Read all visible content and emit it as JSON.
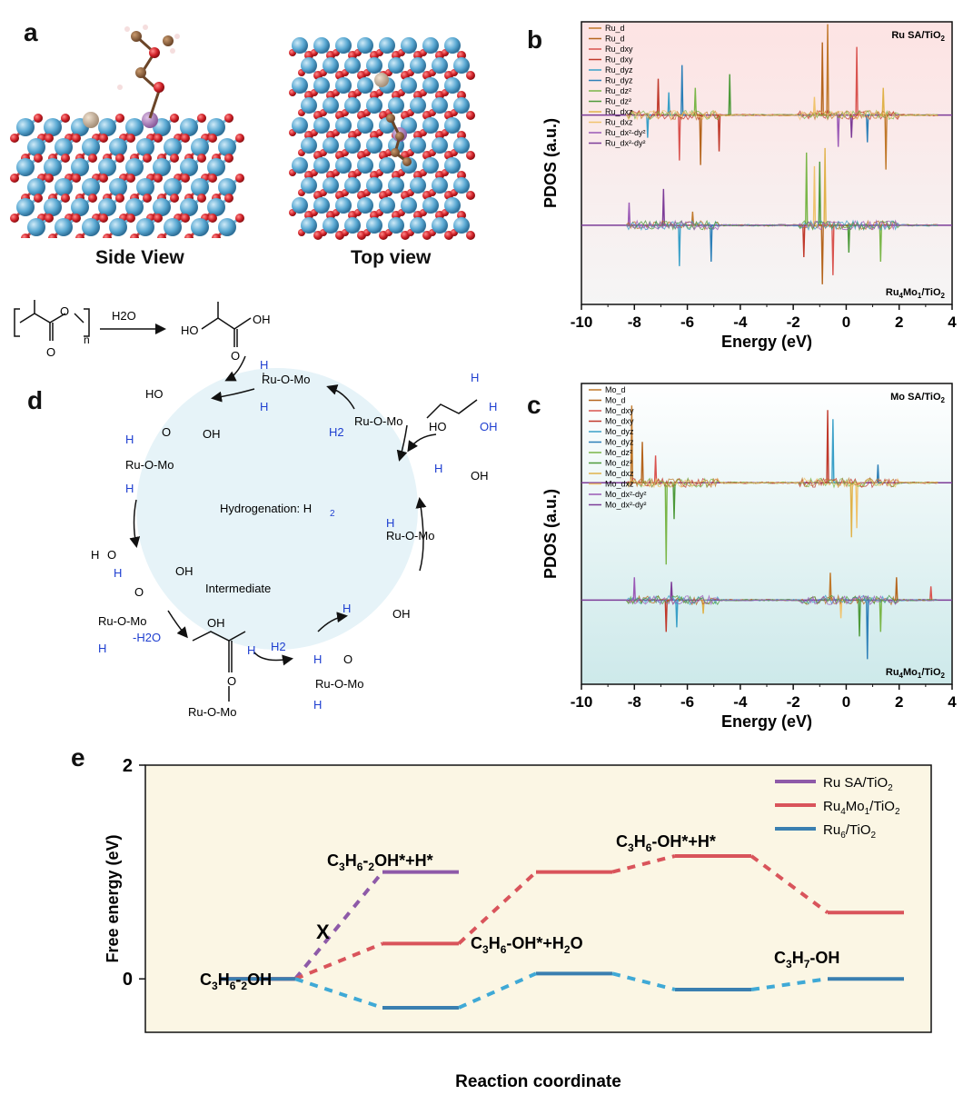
{
  "panels": {
    "a": "a",
    "b": "b",
    "c": "c",
    "d": "d",
    "e": "e"
  },
  "panel_a": {
    "side_label": "Side View",
    "top_label": "Top view"
  },
  "panel_d": {
    "polymer_reagent": "H2O",
    "n_label": "n",
    "hydrogenation": "Hydrogenation: H",
    "hydrogenation_sub": "2",
    "intermediate": "Intermediate",
    "minus_h2o": "-H2O",
    "ruomo": "Ru-O-Mo",
    "h2": "H2",
    "ho": "HO",
    "oh": "OH",
    "o": "O",
    "h": "H"
  },
  "chart_data": [
    {
      "id": "b",
      "type": "line",
      "ylabel": "PDOS (a.u.)",
      "xlabel": "Energy (eV)",
      "xlim": [
        -10,
        4
      ],
      "xticks": [
        -10,
        -8,
        -6,
        -4,
        -2,
        0,
        2,
        4
      ],
      "top_label": "Ru SA/TiO",
      "bottom_label": "Ru4Mo1/TiO",
      "legend": [
        "Ru_d",
        "Ru_d",
        "Ru_dxy",
        "Ru_dxy",
        "Ru_dyz",
        "Ru_dyz",
        "Ru_dz²",
        "Ru_dz²",
        "Ru_dxz",
        "Ru_dxz",
        "Ru_dx²-dy²",
        "Ru_dx²-dy²"
      ],
      "colors": [
        "#c0782a",
        "#b5651d",
        "#d9534f",
        "#c0392b",
        "#3aa0c8",
        "#2c7fb8",
        "#7ab648",
        "#4d9a3a",
        "#e0b24a",
        "#f0c36d",
        "#9b59b6",
        "#7d3c98"
      ],
      "background": [
        "#fde3e3",
        "#f5f5f5"
      ]
    },
    {
      "id": "c",
      "type": "line",
      "ylabel": "PDOS (a.u.)",
      "xlabel": "Energy (eV)",
      "xlim": [
        -10,
        4
      ],
      "xticks": [
        -10,
        -8,
        -6,
        -4,
        -2,
        0,
        2,
        4
      ],
      "top_label": "Mo SA/TiO",
      "bottom_label": "Ru4Mo1/TiO",
      "legend": [
        "Mo_d",
        "Mo_d",
        "Mo_dxy",
        "Mo_dxy",
        "Mo_dyz",
        "Mo_dyz",
        "Mo_dz²",
        "Mo_dz²",
        "Mo_dxz",
        "Mo_dxz",
        "Mo_dx²-dy²",
        "Mo_dx²-dy²"
      ],
      "colors": [
        "#c0782a",
        "#b5651d",
        "#d9534f",
        "#c0392b",
        "#3aa0c8",
        "#2c7fb8",
        "#7ab648",
        "#4d9a3a",
        "#e0b24a",
        "#f0c36d",
        "#9b59b6",
        "#7d3c98"
      ],
      "background": [
        "#ffffff",
        "#cde9ea"
      ]
    },
    {
      "id": "e",
      "type": "line",
      "xlabel": "Reaction coordinate",
      "ylabel": "Free energy (eV)",
      "ylim": [
        -0.5,
        2
      ],
      "yticks": [
        0,
        2
      ],
      "series": [
        {
          "name": "Ru SA/TiO2",
          "color": "#8e5aa8",
          "levels": [
            {
              "step": 0,
              "y": 0
            },
            {
              "step": 1,
              "y": 1.0
            }
          ]
        },
        {
          "name": "Ru4Mo1/TiO2",
          "color": "#d9545b",
          "levels": [
            {
              "step": 0,
              "y": 0
            },
            {
              "step": 1,
              "y": 0.33
            },
            {
              "step": 2,
              "y": 1.0
            },
            {
              "step": 3,
              "y": 1.15
            },
            {
              "step": 4,
              "y": 0.62
            }
          ]
        },
        {
          "name": "Ru6/TiO2",
          "color": "#3a7fb0",
          "levels": [
            {
              "step": 0,
              "y": 0
            },
            {
              "step": 1,
              "y": -0.27
            },
            {
              "step": 2,
              "y": 0.05
            },
            {
              "step": 3,
              "y": -0.1
            },
            {
              "step": 4,
              "y": 0
            }
          ]
        }
      ],
      "annotations": {
        "s0": "C3H6-2OH",
        "s1_top": "C3H6-2OH*+H*",
        "s2": "C3H6-OH*+H2O",
        "s3": "C3H6-OH*+H*",
        "s4": "C3H7-OH",
        "x_mark": "X"
      },
      "legend_labels": [
        "Ru SA/TiO",
        "Ru4Mo1/TiO",
        "Ru6/TiO"
      ],
      "background": "#fbf6e4"
    }
  ]
}
